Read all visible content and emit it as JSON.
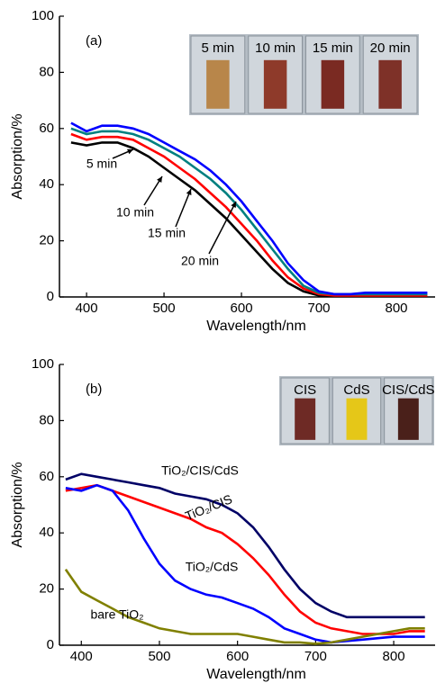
{
  "chart_data": [
    {
      "type": "line",
      "panel_label": "(a)",
      "xlabel": "Wavelength/nm",
      "ylabel": "Absorption/%",
      "x": [
        380,
        400,
        420,
        440,
        460,
        480,
        500,
        520,
        540,
        560,
        580,
        600,
        620,
        640,
        660,
        680,
        700,
        720,
        740,
        760,
        780,
        800,
        820,
        840
      ],
      "series": [
        {
          "name": "5 min",
          "color": "#000000",
          "values": [
            55,
            54,
            55,
            55,
            53,
            50,
            46,
            42,
            38,
            33,
            28,
            22,
            16,
            10,
            5,
            2,
            0.5,
            0,
            0,
            0,
            0,
            0,
            0,
            0
          ]
        },
        {
          "name": "10 min",
          "color": "#ff0000",
          "values": [
            58,
            56,
            57,
            57,
            56,
            53,
            50,
            46,
            42,
            37,
            32,
            26,
            20,
            13,
            7,
            3,
            1,
            0.5,
            0.5,
            0.5,
            0.5,
            0.5,
            0.5,
            0.5
          ]
        },
        {
          "name": "15 min",
          "color": "#008080",
          "values": [
            60,
            58,
            59,
            59,
            58,
            56,
            53,
            50,
            46,
            42,
            37,
            31,
            24,
            17,
            10,
            4,
            1.5,
            1,
            1,
            1,
            1,
            1,
            1,
            1
          ]
        },
        {
          "name": "20 min",
          "color": "#0000ff",
          "values": [
            62,
            59,
            61,
            61,
            60,
            58,
            55,
            52,
            49,
            45,
            40,
            34,
            27,
            20,
            12,
            6,
            2,
            1,
            1,
            1.5,
            1.5,
            1.5,
            1.5,
            1.5
          ]
        }
      ],
      "xlim": [
        365,
        850
      ],
      "ylim": [
        0,
        100
      ],
      "xticks": [
        400,
        500,
        600,
        700,
        800
      ],
      "yticks": [
        0,
        20,
        40,
        60,
        80,
        100
      ],
      "inset_labels": [
        "5 min",
        "10 min",
        "15 min",
        "20 min"
      ]
    },
    {
      "type": "line",
      "panel_label": "(b)",
      "xlabel": "Wavelength/nm",
      "ylabel": "Absorption/%",
      "x": [
        380,
        400,
        420,
        440,
        460,
        480,
        500,
        520,
        540,
        560,
        580,
        600,
        620,
        640,
        660,
        680,
        700,
        720,
        740,
        760,
        780,
        800,
        820,
        840
      ],
      "series": [
        {
          "name": "TiO₂/CIS/CdS",
          "color": "#000066",
          "values": [
            59,
            61,
            60,
            59,
            58,
            57,
            56,
            54,
            53,
            52,
            50,
            47,
            42,
            35,
            27,
            20,
            15,
            12,
            10,
            10,
            10,
            10,
            10,
            10
          ]
        },
        {
          "name": "TiO₂/CIS",
          "color": "#ff0000",
          "values": [
            55,
            56,
            57,
            55,
            53,
            51,
            49,
            47,
            45,
            42,
            40,
            36,
            31,
            25,
            18,
            12,
            8,
            6,
            5,
            4,
            4,
            4,
            5,
            5
          ]
        },
        {
          "name": "TiO₂/CdS",
          "color": "#0000ff",
          "values": [
            56,
            55,
            57,
            55,
            48,
            38,
            29,
            23,
            20,
            18,
            17,
            15,
            13,
            10,
            6,
            4,
            2,
            1,
            1.5,
            2,
            2.5,
            3,
            3,
            3
          ]
        },
        {
          "name": "bare TiO₂",
          "color": "#808000",
          "values": [
            27,
            19,
            16,
            13,
            10,
            8,
            6,
            5,
            4,
            4,
            4,
            4,
            3,
            2,
            1,
            1,
            0.5,
            1,
            2,
            3,
            4,
            5,
            6,
            6
          ]
        }
      ],
      "xlim": [
        372,
        853
      ],
      "ylim": [
        0,
        100
      ],
      "xticks": [
        400,
        500,
        600,
        700,
        800
      ],
      "yticks": [
        0,
        20,
        40,
        60,
        80,
        100
      ],
      "inset_labels": [
        "CIS",
        "CdS",
        "CIS/CdS"
      ]
    }
  ]
}
